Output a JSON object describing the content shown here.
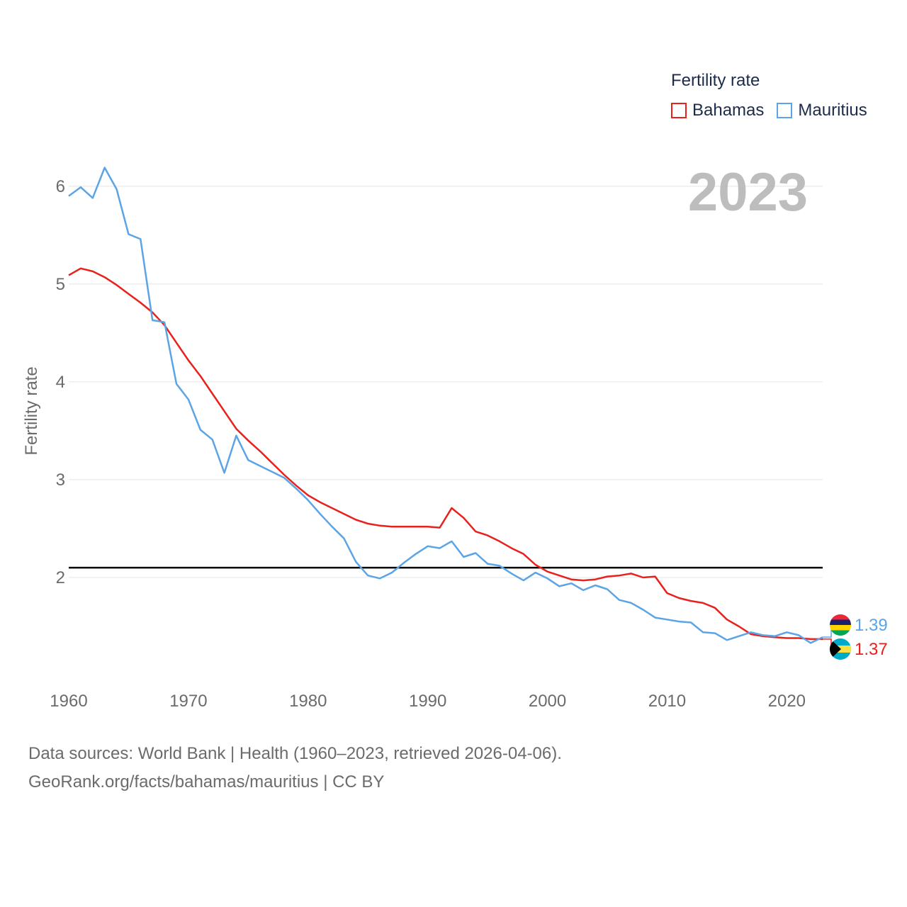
{
  "legend": {
    "title": "Fertility rate",
    "items": [
      {
        "label": "Bahamas",
        "color": "#e8211d"
      },
      {
        "label": "Mauritius",
        "color": "#5ba4e6"
      }
    ]
  },
  "year_label": "2023",
  "footer": {
    "line1": "Data sources: World Bank | Health (1960–2023, retrieved 2026-04-06).",
    "line2": "GeoRank.org/facts/bahamas/mauritius | CC BY"
  },
  "chart_data": {
    "type": "line",
    "title": "Fertility rate",
    "ylabel": "Fertility rate",
    "xlabel": "",
    "xlim": [
      1960,
      2023
    ],
    "ylim": [
      1,
      6.6
    ],
    "x_ticks": [
      1960,
      1970,
      1980,
      1990,
      2000,
      2010,
      2020
    ],
    "y_ticks": [
      2,
      3,
      4,
      5,
      6
    ],
    "reference_line": {
      "y": 2.1,
      "color": "#000000"
    },
    "grid": true,
    "legend_position": "top-right",
    "series": [
      {
        "name": "Bahamas",
        "color": "#e8211d",
        "end_label": "1.37",
        "end_flag": "bahamas-flag-icon",
        "x": [
          1960,
          1961,
          1962,
          1963,
          1964,
          1965,
          1966,
          1967,
          1968,
          1969,
          1970,
          1971,
          1972,
          1973,
          1974,
          1975,
          1976,
          1977,
          1978,
          1979,
          1980,
          1981,
          1982,
          1983,
          1984,
          1985,
          1986,
          1987,
          1988,
          1989,
          1990,
          1991,
          1992,
          1993,
          1994,
          1995,
          1996,
          1997,
          1998,
          1999,
          2000,
          2001,
          2002,
          2003,
          2004,
          2005,
          2006,
          2007,
          2008,
          2009,
          2010,
          2011,
          2012,
          2013,
          2014,
          2015,
          2016,
          2017,
          2018,
          2019,
          2020,
          2021,
          2022,
          2023
        ],
        "values": [
          5.09,
          5.16,
          5.13,
          5.07,
          4.99,
          4.9,
          4.81,
          4.71,
          4.58,
          4.4,
          4.22,
          4.06,
          3.88,
          3.7,
          3.52,
          3.4,
          3.29,
          3.17,
          3.05,
          2.94,
          2.84,
          2.77,
          2.71,
          2.65,
          2.59,
          2.55,
          2.53,
          2.52,
          2.52,
          2.52,
          2.52,
          2.51,
          2.71,
          2.61,
          2.47,
          2.43,
          2.37,
          2.3,
          2.24,
          2.13,
          2.06,
          2.02,
          1.98,
          1.97,
          1.98,
          2.01,
          2.02,
          2.04,
          2.0,
          2.01,
          1.84,
          1.79,
          1.76,
          1.74,
          1.69,
          1.57,
          1.5,
          1.42,
          1.4,
          1.39,
          1.38,
          1.38,
          1.37,
          1.37
        ]
      },
      {
        "name": "Mauritius",
        "color": "#5ba4e6",
        "end_label": "1.39",
        "end_flag": "mauritius-flag-icon",
        "x": [
          1960,
          1961,
          1962,
          1963,
          1964,
          1965,
          1966,
          1967,
          1968,
          1969,
          1970,
          1971,
          1972,
          1973,
          1974,
          1975,
          1976,
          1977,
          1978,
          1979,
          1980,
          1981,
          1982,
          1983,
          1984,
          1985,
          1986,
          1987,
          1988,
          1989,
          1990,
          1991,
          1992,
          1993,
          1994,
          1995,
          1996,
          1997,
          1998,
          1999,
          2000,
          2001,
          2002,
          2003,
          2004,
          2005,
          2006,
          2007,
          2008,
          2009,
          2010,
          2011,
          2012,
          2013,
          2014,
          2015,
          2016,
          2017,
          2018,
          2019,
          2020,
          2021,
          2022,
          2023
        ],
        "values": [
          5.9,
          5.99,
          5.88,
          6.19,
          5.97,
          5.51,
          5.46,
          4.63,
          4.61,
          3.98,
          3.82,
          3.51,
          3.41,
          3.07,
          3.45,
          3.2,
          3.14,
          3.08,
          3.02,
          2.91,
          2.79,
          2.65,
          2.52,
          2.4,
          2.16,
          2.02,
          1.99,
          2.05,
          2.15,
          2.24,
          2.32,
          2.3,
          2.37,
          2.21,
          2.25,
          2.14,
          2.12,
          2.04,
          1.97,
          2.05,
          1.99,
          1.91,
          1.94,
          1.87,
          1.92,
          1.88,
          1.77,
          1.74,
          1.67,
          1.59,
          1.57,
          1.55,
          1.54,
          1.44,
          1.43,
          1.36,
          1.4,
          1.44,
          1.41,
          1.4,
          1.44,
          1.41,
          1.33,
          1.39
        ]
      }
    ]
  }
}
